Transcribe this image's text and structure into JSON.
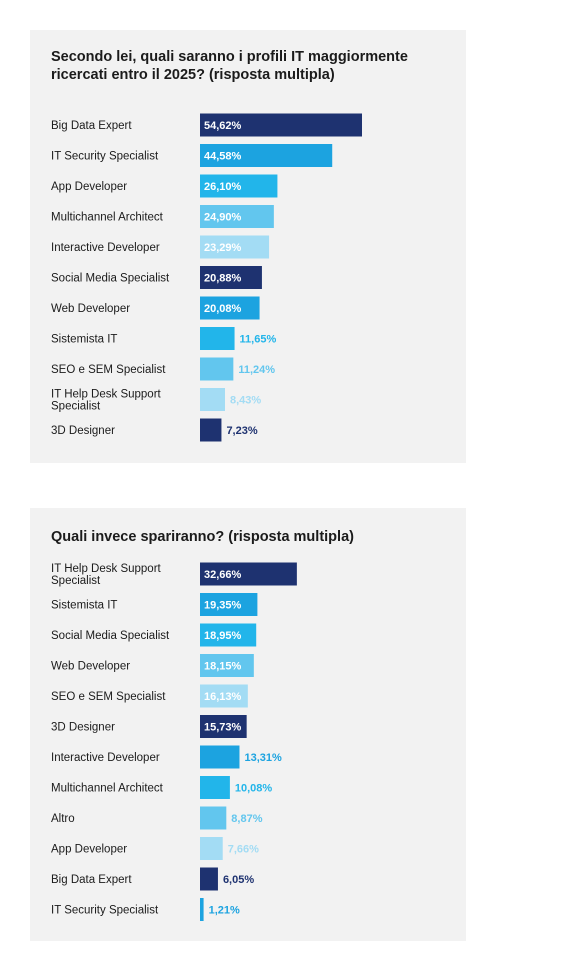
{
  "chart_data": [
    {
      "type": "bar",
      "orientation": "horizontal",
      "title": "Secondo lei, quali saranno i profili IT maggiormente ricercati entro il 2025? (risposta multipla)",
      "categories": [
        "Big Data Expert",
        "IT Security Specialist",
        "App Developer",
        "Multichannel Architect",
        "Interactive Developer",
        "Social Media Specialist",
        "Web Developer",
        "Sistemista IT",
        "SEO e SEM Specialist",
        "IT Help Desk Support Specialist",
        "3D Designer"
      ],
      "values": [
        54.62,
        44.58,
        26.1,
        24.9,
        23.29,
        20.88,
        20.08,
        11.65,
        11.24,
        8.43,
        7.23
      ],
      "value_labels": [
        "54,62%",
        "44,58%",
        "26,10%",
        "24,90%",
        "23,29%",
        "20,88%",
        "20,08%",
        "11,65%",
        "11,24%",
        "8,43%",
        "7,23%"
      ],
      "colors": [
        "#1e3270",
        "#1ca3e0",
        "#22b5ea",
        "#62c6ee",
        "#a3dcf4",
        "#1e3270",
        "#1ca3e0",
        "#22b5ea",
        "#62c6ee",
        "#a3dcf4",
        "#1e3270"
      ],
      "grid": false,
      "legend": "none"
    },
    {
      "type": "bar",
      "orientation": "horizontal",
      "title": "Quali invece spariranno? (risposta multipla)",
      "categories": [
        "IT Help Desk Support Specialist",
        "Sistemista IT",
        "Social Media Specialist",
        "Web Developer",
        "SEO e SEM Specialist",
        "3D Designer",
        "Interactive Developer",
        "Multichannel Architect",
        "Altro",
        "App Developer",
        "Big Data Expert",
        "IT Security Specialist"
      ],
      "values": [
        32.66,
        19.35,
        18.95,
        18.15,
        16.13,
        15.73,
        13.31,
        10.08,
        8.87,
        7.66,
        6.05,
        1.21
      ],
      "value_labels": [
        "32,66%",
        "19,35%",
        "18,95%",
        "18,15%",
        "16,13%",
        "15,73%",
        "13,31%",
        "10,08%",
        "8,87%",
        "7,66%",
        "6,05%",
        "1,21%"
      ],
      "colors": [
        "#1e3270",
        "#1ca3e0",
        "#22b5ea",
        "#62c6ee",
        "#a3dcf4",
        "#1e3270",
        "#1ca3e0",
        "#22b5ea",
        "#62c6ee",
        "#a3dcf4",
        "#1e3270",
        "#1ca3e0"
      ],
      "grid": false,
      "legend": "none"
    }
  ]
}
